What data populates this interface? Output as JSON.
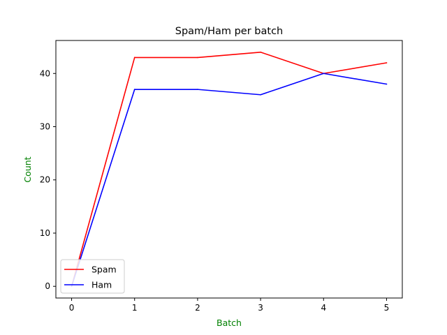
{
  "chart_data": {
    "type": "line",
    "title": "Spam/Ham per batch",
    "xlabel": "Batch",
    "ylabel": "Count",
    "axis_label_color": "#008000",
    "x": [
      0,
      1,
      2,
      3,
      4,
      5
    ],
    "series": [
      {
        "name": "Spam",
        "color": "#ff0000",
        "values": [
          0,
          43,
          43,
          44,
          40,
          42
        ]
      },
      {
        "name": "Ham",
        "color": "#0000ff",
        "values": [
          0,
          37,
          37,
          36,
          40,
          38
        ]
      }
    ],
    "xlim": [
      -0.25,
      5.25
    ],
    "ylim": [
      -2.2,
      46.2
    ],
    "xticks": [
      0,
      1,
      2,
      3,
      4,
      5
    ],
    "yticks": [
      0,
      10,
      20,
      30,
      40
    ],
    "grid": false,
    "legend_position": "lower-left"
  }
}
